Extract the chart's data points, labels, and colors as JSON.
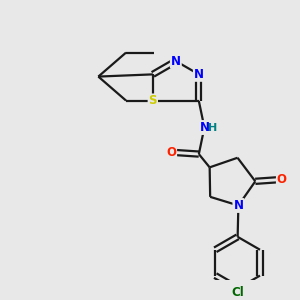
{
  "bg_color": "#e8e8e8",
  "bond_color": "#1a1a1a",
  "bond_width": 1.6,
  "atom_colors": {
    "N": "#0000ff",
    "O": "#ff2200",
    "S": "#cccc00",
    "Cl": "#006600",
    "C": "#1a1a1a",
    "H": "#008080"
  },
  "font_size": 8.5
}
